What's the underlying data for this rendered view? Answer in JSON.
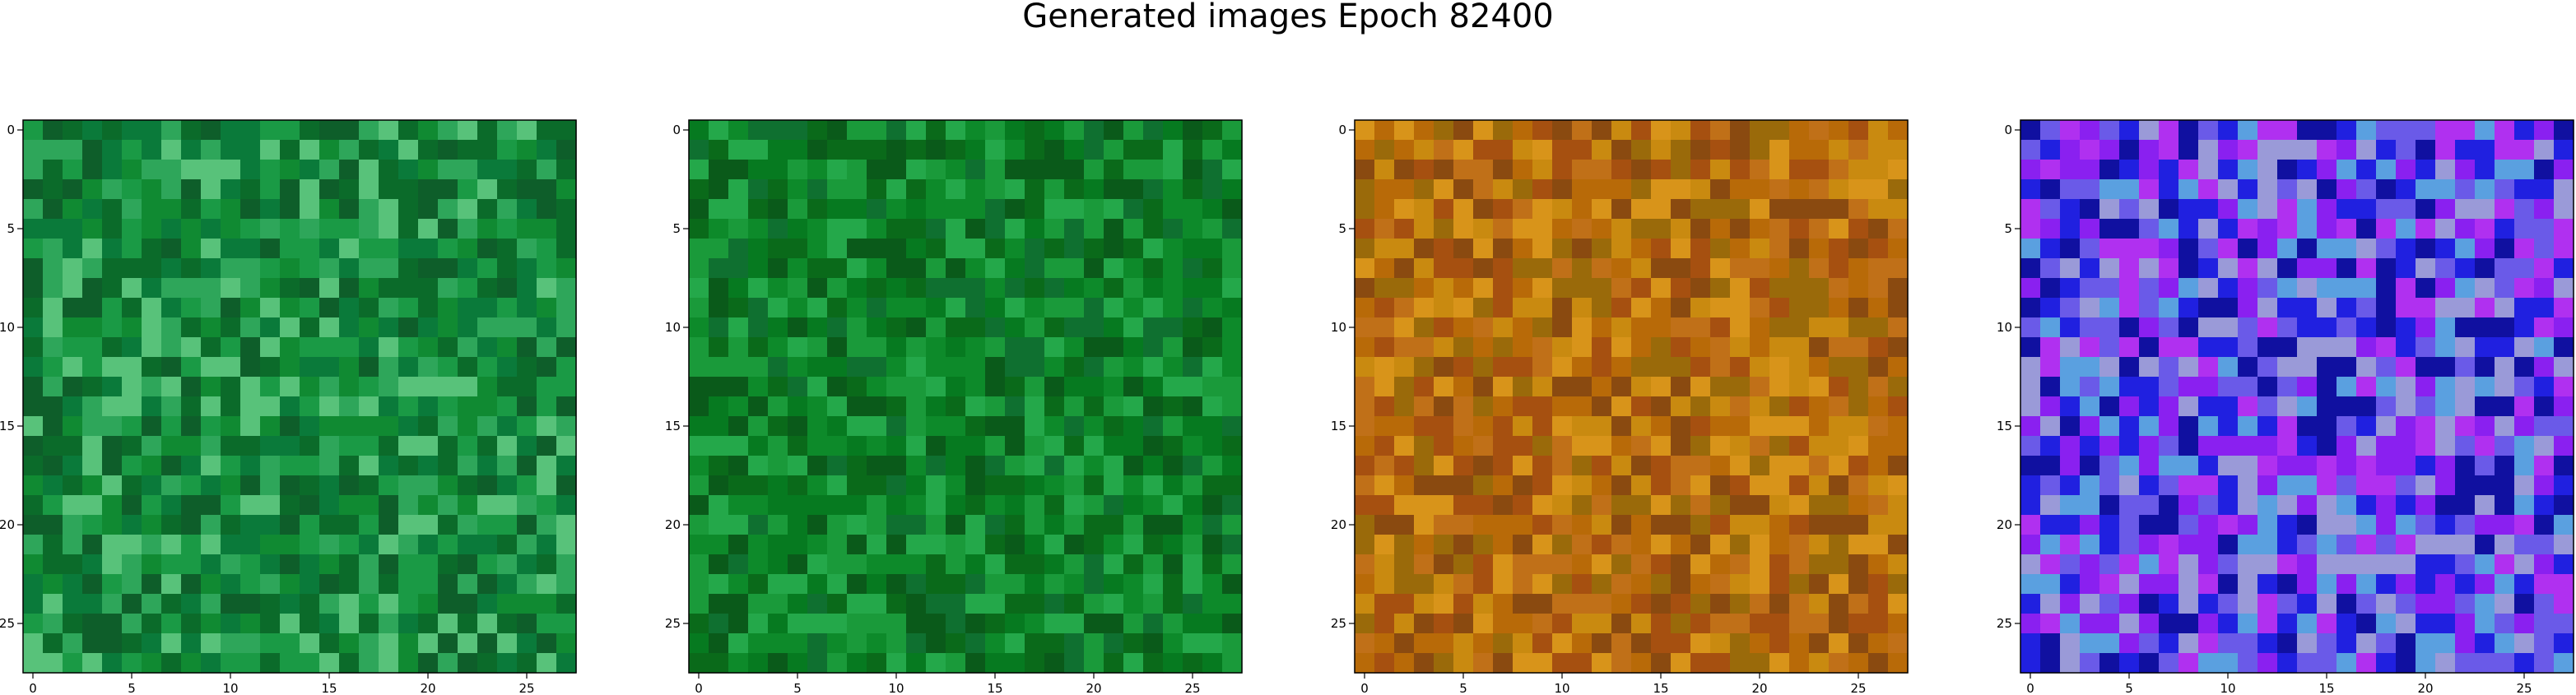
{
  "title": "Generated images Epoch 82400",
  "chart_data": {
    "type": "heatmap",
    "title": "Generated images Epoch 82400",
    "grid": false,
    "panels": [
      {
        "name": "green",
        "xlim": [
          0,
          27
        ],
        "ylim": [
          27,
          0
        ],
        "xticks": [
          0,
          5,
          10,
          15,
          20,
          25
        ],
        "yticks": [
          0,
          5,
          10,
          15,
          20,
          25
        ],
        "palette": [
          "#0b6b2a",
          "#108a32",
          "#1a9a45",
          "#0e5e2a",
          "#2ea65a",
          "#0a7a3a",
          "#58c27a"
        ]
      },
      {
        "name": "dark-green",
        "xlim": [
          0,
          27
        ],
        "ylim": [
          27,
          0
        ],
        "xticks": [
          0,
          5,
          10,
          15,
          20,
          25
        ],
        "yticks": [
          0,
          5,
          10,
          15,
          20,
          25
        ],
        "palette": [
          "#0a6a1a",
          "#0d8a2a",
          "#067a20",
          "#1a9a3a",
          "#0a5a1a",
          "#24a84a",
          "#0f7030"
        ]
      },
      {
        "name": "orange",
        "xlim": [
          0,
          27
        ],
        "ylim": [
          27,
          0
        ],
        "xticks": [
          0,
          5,
          10,
          15,
          20,
          25
        ],
        "yticks": [
          0,
          5,
          10,
          15,
          20,
          25
        ],
        "palette": [
          "#b86a08",
          "#c98a10",
          "#a65010",
          "#d8941a",
          "#9a6a0a",
          "#c07018",
          "#8a4a10"
        ]
      },
      {
        "name": "purple-blue",
        "xlim": [
          0,
          27
        ],
        "ylim": [
          27,
          0
        ],
        "xticks": [
          0,
          5,
          10,
          15,
          20,
          25
        ],
        "yticks": [
          0,
          5,
          10,
          15,
          20,
          25
        ],
        "palette": [
          "#2020e0",
          "#8a20f0",
          "#6a5ae8",
          "#1010a0",
          "#b030f0",
          "#5aa0e0",
          "#9a9ad8"
        ]
      }
    ]
  }
}
